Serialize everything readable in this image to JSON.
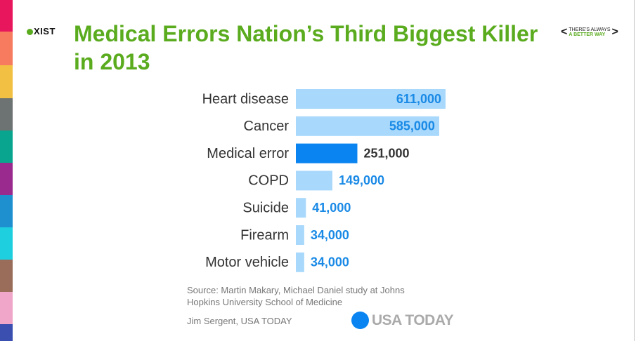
{
  "logo": "XIST",
  "tagline": [
    "THERE'S ALWAYS",
    "A BETTER WAY"
  ],
  "source": [
    "Source: Martin Makary, Michael Daniel study at Johns",
    "Hopkins University School of Medicine"
  ],
  "credit": "Jim Sergent, USA TODAY",
  "brand": "USA TODAY",
  "chart_data": {
    "type": "bar",
    "orientation": "horizontal",
    "title": "Medical Errors Nation’s Third Biggest Killer in 2013",
    "categories": [
      "Heart disease",
      "Cancer",
      "Medical error",
      "COPD",
      "Suicide",
      "Firearm",
      "Motor vehicle"
    ],
    "values": [
      611000,
      585000,
      251000,
      149000,
      41000,
      34000,
      34000
    ],
    "value_labels": [
      "611,000",
      "585,000",
      "251,000",
      "149,000",
      "41,000",
      "34,000",
      "34,000"
    ],
    "colors": [
      "#a8d8fb",
      "#a8d8fb",
      "#0a84f0",
      "#a8d8fb",
      "#a8d8fb",
      "#a8d8fb",
      "#a8d8fb"
    ],
    "label_colors": [
      "#1a8ae6",
      "#1a8ae6",
      "#333333",
      "#1a8ae6",
      "#1a8ae6",
      "#1a8ae6",
      "#1a8ae6"
    ]
  }
}
